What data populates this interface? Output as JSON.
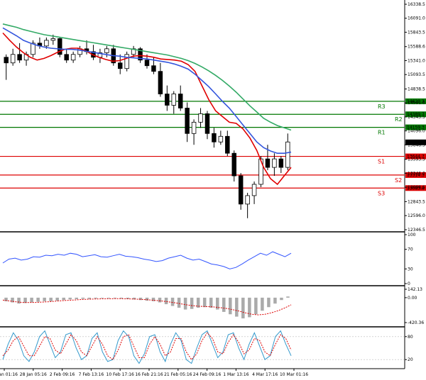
{
  "chart_data": [
    {
      "panel": "price",
      "type": "candlestick",
      "ylim": [
        12346.5,
        16338.5
      ],
      "y_ticks": [
        "16338.5",
        "16091.0",
        "15843.5",
        "15588.6",
        "15341.0",
        "15093.5",
        "14838.5",
        "14591.0",
        "14343.5",
        "14096.0",
        "13848.5",
        "13593.5",
        "13346.0",
        "13098.5",
        "12843.5",
        "12596.0",
        "12346.5"
      ],
      "x_ticks": [
        "25 Jan 01:16",
        "28 Jan 05:16",
        "2 Feb 09:16",
        "7 Feb 13:16",
        "10 Feb 17:16",
        "16 Feb 21:16",
        "21 Feb 05:16",
        "24 Feb 09:16",
        "1 Mar 13:16",
        "4 Mar 17:16",
        "10 Mar 01:16"
      ],
      "levels": [
        {
          "name": "R3",
          "value": 14620.3,
          "label": "14620.3",
          "color": "#007700"
        },
        {
          "name": "R2",
          "value": 14389.7,
          "label": "14389.7",
          "color": "#007700"
        },
        {
          "name": "R1",
          "value": 14159.3,
          "label": "14159.3",
          "color": "#007700"
        },
        {
          "name": "S1",
          "value": 13644.7,
          "label": "13644.7",
          "color": "#dd0000"
        },
        {
          "name": "S2",
          "value": 13314.3,
          "label": "13314.3",
          "color": "#dd0000"
        },
        {
          "name": "S3",
          "value": 13083.8,
          "label": "13083.8",
          "color": "#dd0000"
        }
      ],
      "last_price": {
        "value": 13893.0,
        "label": "13893.0"
      },
      "series": [
        {
          "kind": "ma-fast",
          "color": "#e00000",
          "values": [
            15830,
            15700,
            15580,
            15480,
            15400,
            15350,
            15380,
            15430,
            15490,
            15540,
            15560,
            15560,
            15520,
            15450,
            15400,
            15360,
            15330,
            15340,
            15380,
            15420,
            15430,
            15420,
            15400,
            15370,
            15360,
            15350,
            15330,
            15270,
            15150,
            14900,
            14650,
            14450,
            14350,
            14250,
            14230,
            14130,
            13970,
            13750,
            13450,
            13250,
            13150,
            13300,
            13450
          ]
        },
        {
          "kind": "ma-mid",
          "color": "#3355dd",
          "values": [
            15920,
            15850,
            15780,
            15700,
            15650,
            15610,
            15580,
            15560,
            15550,
            15540,
            15540,
            15530,
            15510,
            15490,
            15470,
            15450,
            15430,
            15420,
            15400,
            15390,
            15380,
            15370,
            15350,
            15330,
            15310,
            15280,
            15240,
            15190,
            15100,
            14990,
            14880,
            14750,
            14620,
            14500,
            14350,
            14200,
            14050,
            13900,
            13800,
            13740,
            13700,
            13700,
            13720
          ]
        },
        {
          "kind": "ma-slow",
          "color": "#33aa66",
          "values": [
            15990,
            15960,
            15930,
            15890,
            15860,
            15830,
            15800,
            15780,
            15760,
            15740,
            15720,
            15700,
            15680,
            15660,
            15640,
            15620,
            15600,
            15580,
            15560,
            15540,
            15520,
            15500,
            15480,
            15460,
            15440,
            15410,
            15380,
            15340,
            15290,
            15230,
            15160,
            15080,
            14990,
            14890,
            14780,
            14660,
            14540,
            14430,
            14320,
            14250,
            14190,
            14150,
            14110
          ]
        },
        {
          "kind": "candles",
          "values": [
            [
              15400,
              15450,
              15000,
              15300
            ],
            [
              15300,
              15550,
              15250,
              15450
            ],
            [
              15450,
              15650,
              15300,
              15350
            ],
            [
              15350,
              15500,
              15250,
              15450
            ],
            [
              15450,
              15700,
              15400,
              15650
            ],
            [
              15650,
              15750,
              15550,
              15600
            ],
            [
              15600,
              15750,
              15550,
              15700
            ],
            [
              15700,
              15800,
              15620,
              15730
            ],
            [
              15730,
              15760,
              15400,
              15450
            ],
            [
              15450,
              15550,
              15300,
              15350
            ],
            [
              15350,
              15500,
              15300,
              15450
            ],
            [
              15450,
              15600,
              15400,
              15550
            ],
            [
              15550,
              15700,
              15450,
              15500
            ],
            [
              15500,
              15620,
              15350,
              15400
            ],
            [
              15400,
              15550,
              15300,
              15480
            ],
            [
              15480,
              15600,
              15400,
              15550
            ],
            [
              15550,
              15620,
              15250,
              15300
            ],
            [
              15300,
              15450,
              15100,
              15200
            ],
            [
              15200,
              15500,
              15150,
              15450
            ],
            [
              15450,
              15600,
              15400,
              15550
            ],
            [
              15550,
              15580,
              15300,
              15350
            ],
            [
              15350,
              15450,
              15200,
              15250
            ],
            [
              15250,
              15400,
              15100,
              15150
            ],
            [
              15150,
              15300,
              14700,
              14750
            ],
            [
              14750,
              14900,
              14450,
              14550
            ],
            [
              14550,
              14800,
              14400,
              14750
            ],
            [
              14750,
              14900,
              14450,
              14500
            ],
            [
              14500,
              14600,
              13900,
              14050
            ],
            [
              14050,
              14300,
              13850,
              14250
            ],
            [
              14250,
              14500,
              14150,
              14400
            ],
            [
              14400,
              14450,
              13950,
              14050
            ],
            [
              14050,
              14150,
              13800,
              13900
            ],
            [
              13900,
              14100,
              13850,
              14000
            ],
            [
              14000,
              14100,
              13650,
              13700
            ],
            [
              13700,
              13750,
              13200,
              13300
            ],
            [
              13300,
              13350,
              12700,
              12800
            ],
            [
              12800,
              13000,
              12550,
              12950
            ],
            [
              12950,
              13200,
              12800,
              13150
            ],
            [
              13150,
              13650,
              13100,
              13600
            ],
            [
              13600,
              13850,
              13400,
              13450
            ],
            [
              13450,
              13700,
              13300,
              13600
            ],
            [
              13600,
              13650,
              13350,
              13450
            ],
            [
              13450,
              14050,
              13400,
              13900
            ]
          ]
        }
      ]
    },
    {
      "panel": "rsi",
      "type": "line",
      "y_ticks": [
        "100",
        "70",
        "30",
        "0"
      ],
      "ylim": [
        0,
        100
      ],
      "series": [
        {
          "color": "#3355ff",
          "values": [
            42,
            50,
            52,
            48,
            50,
            55,
            54,
            58,
            57,
            60,
            58,
            62,
            60,
            55,
            57,
            59,
            55,
            54,
            57,
            60,
            56,
            55,
            53,
            50,
            48,
            45,
            47,
            52,
            55,
            58,
            52,
            48,
            50,
            45,
            40,
            38,
            35,
            30,
            33,
            40,
            48,
            55,
            62,
            58,
            65,
            60,
            55,
            62
          ]
        }
      ]
    },
    {
      "panel": "macd",
      "type": "bar",
      "y_ticks": [
        "142.13",
        "0.00",
        "-420.36"
      ],
      "ylim": [
        -420.36,
        142.13
      ],
      "series": [
        {
          "kind": "histogram",
          "color": "#aaaaaa",
          "values": [
            -60,
            -80,
            -100,
            -90,
            -80,
            -70,
            -60,
            -60,
            -50,
            -40,
            -30,
            -25,
            -20,
            -20,
            -15,
            -10,
            -10,
            -10,
            -15,
            -20,
            -30,
            -40,
            -50,
            -60,
            -80,
            -110,
            -140,
            -170,
            -200,
            -190,
            -170,
            -160,
            -170,
            -200,
            -240,
            -280,
            -320,
            -350,
            -330,
            -280,
            -220,
            -160,
            -100,
            -40,
            20
          ]
        },
        {
          "kind": "signal",
          "color": "#dd0000",
          "values": [
            -40,
            -55,
            -70,
            -80,
            -82,
            -80,
            -75,
            -68,
            -60,
            -52,
            -45,
            -38,
            -32,
            -27,
            -23,
            -20,
            -18,
            -17,
            -17,
            -19,
            -23,
            -28,
            -35,
            -43,
            -53,
            -66,
            -82,
            -100,
            -120,
            -135,
            -145,
            -150,
            -155,
            -165,
            -180,
            -200,
            -225,
            -255,
            -280,
            -290,
            -280,
            -255,
            -220,
            -175,
            -120
          ]
        }
      ]
    },
    {
      "panel": "stochastic",
      "type": "line",
      "y_ticks": [
        "80",
        "20"
      ],
      "ylim": [
        0,
        100
      ],
      "series": [
        {
          "kind": "main",
          "color": "#3399cc",
          "values": [
            20,
            60,
            90,
            70,
            30,
            15,
            40,
            80,
            95,
            60,
            25,
            40,
            85,
            90,
            50,
            20,
            30,
            75,
            90,
            40,
            15,
            20,
            70,
            95,
            80,
            30,
            10,
            35,
            80,
            85,
            40,
            15,
            60,
            90,
            70,
            20,
            10,
            50,
            85,
            95,
            60,
            25,
            40,
            85,
            90,
            50,
            20,
            60,
            90,
            55,
            20,
            30,
            80,
            95,
            60,
            30
          ]
        },
        {
          "kind": "signal",
          "color": "#dd0000",
          "values": [
            30,
            45,
            70,
            80,
            55,
            30,
            30,
            55,
            80,
            75,
            45,
            35,
            60,
            85,
            70,
            40,
            30,
            55,
            80,
            60,
            30,
            20,
            45,
            80,
            85,
            55,
            25,
            25,
            60,
            80,
            60,
            30,
            40,
            75,
            75,
            40,
            20,
            35,
            70,
            90,
            75,
            40,
            35,
            65,
            85,
            65,
            35,
            45,
            75,
            70,
            40,
            30,
            60,
            85,
            75,
            45
          ]
        }
      ]
    }
  ]
}
